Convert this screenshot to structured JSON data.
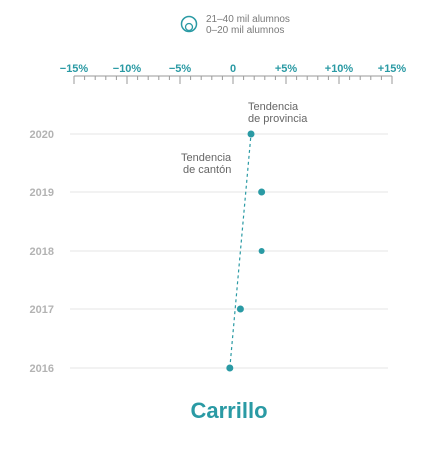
{
  "colors": {
    "accent": "#2a9aa4",
    "grid": "#e6e6e6",
    "year_label": "#b3b3b3",
    "annotation": "#666666"
  },
  "legend": {
    "line1": "21–40 mil alumnos",
    "line2": "0–20 mil alumnos",
    "icon": "nested-circles-size-icon"
  },
  "chart_data": {
    "type": "scatter",
    "title": "Carrillo",
    "x_tick_labels": [
      "−15%",
      "−10%",
      "−5%",
      "0",
      "+5%",
      "+10%",
      "+15%"
    ],
    "x_ticks": [
      -15,
      -10,
      -5,
      0,
      5,
      10,
      15
    ],
    "xlim": [
      -15,
      15
    ],
    "categories": [
      "2020",
      "2019",
      "2018",
      "2017",
      "2016"
    ],
    "values": [
      1.7,
      2.7,
      2.7,
      0.7,
      -0.3
    ],
    "trend_line": {
      "label_line1": "Tendencia",
      "label_line2": "de cantón",
      "from": {
        "year": "2016",
        "x": -0.3
      },
      "to": {
        "year": "2020",
        "x": 1.7
      }
    },
    "province_trend": {
      "label_line1": "Tendencia",
      "label_line2": "de provincia"
    },
    "grid": true
  }
}
